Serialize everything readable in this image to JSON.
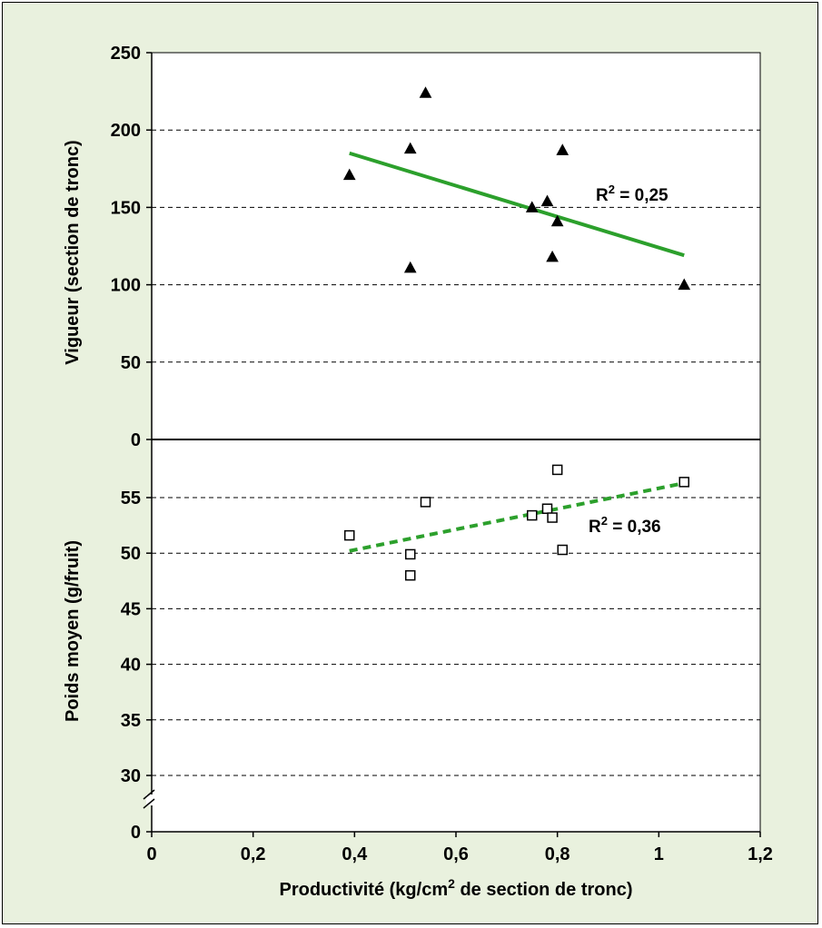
{
  "chart_data": {
    "type": "scatter",
    "x_axis": {
      "label_parts": [
        "Productivité (kg/cm",
        "2",
        " de section de tronc)"
      ],
      "range": [
        0,
        1.2
      ],
      "ticks": [
        0,
        0.2,
        0.4,
        0.6,
        0.8,
        1,
        1.2
      ],
      "tick_labels": [
        "0",
        "0,2",
        "0,4",
        "0,6",
        "0,8",
        "1",
        "1,2"
      ]
    },
    "panels": [
      {
        "id": "vigueur",
        "ylabel": "Vigueur (section de tronc)",
        "ylim": [
          0,
          250
        ],
        "ticks": [
          0,
          50,
          100,
          150,
          200,
          250
        ],
        "tick_labels": [
          "0",
          "50",
          "100",
          "150",
          "200",
          "250"
        ],
        "grid": "dashed",
        "series": {
          "marker": "filled-triangle",
          "points": [
            [
              0.39,
              171
            ],
            [
              0.51,
              188
            ],
            [
              0.51,
              111
            ],
            [
              0.54,
              224
            ],
            [
              0.75,
              150
            ],
            [
              0.78,
              154
            ],
            [
              0.79,
              118
            ],
            [
              0.8,
              141
            ],
            [
              0.81,
              187
            ],
            [
              1.05,
              100
            ]
          ]
        },
        "trendline": {
          "x": [
            0.39,
            1.05
          ],
          "y": [
            185,
            119
          ],
          "style": "solid",
          "color": "#2ca02c"
        },
        "r2": {
          "prefix": "R",
          "sup": "2",
          "suffix": " = 0,25"
        }
      },
      {
        "id": "poids",
        "ylabel": "Poids moyen (g/fruit)",
        "ylim": [
          0,
          60
        ],
        "axis_break": true,
        "ticks": [
          30,
          35,
          40,
          45,
          50,
          55
        ],
        "tick_labels": [
          "30",
          "35",
          "40",
          "45",
          "50",
          "55"
        ],
        "bottom_label": "0",
        "grid": "dashed",
        "series": {
          "marker": "open-square",
          "points": [
            [
              0.39,
              51.6
            ],
            [
              0.51,
              49.9
            ],
            [
              0.51,
              48.0
            ],
            [
              0.54,
              54.6
            ],
            [
              0.75,
              53.4
            ],
            [
              0.78,
              54.0
            ],
            [
              0.79,
              53.2
            ],
            [
              0.8,
              57.5
            ],
            [
              0.81,
              50.3
            ],
            [
              1.05,
              56.4
            ]
          ]
        },
        "trendline": {
          "x": [
            0.39,
            1.05
          ],
          "y": [
            50.2,
            56.3
          ],
          "style": "dashed",
          "color": "#2ca02c"
        },
        "r2": {
          "prefix": "R",
          "sup": "2",
          "suffix": " = 0,36"
        }
      }
    ]
  }
}
